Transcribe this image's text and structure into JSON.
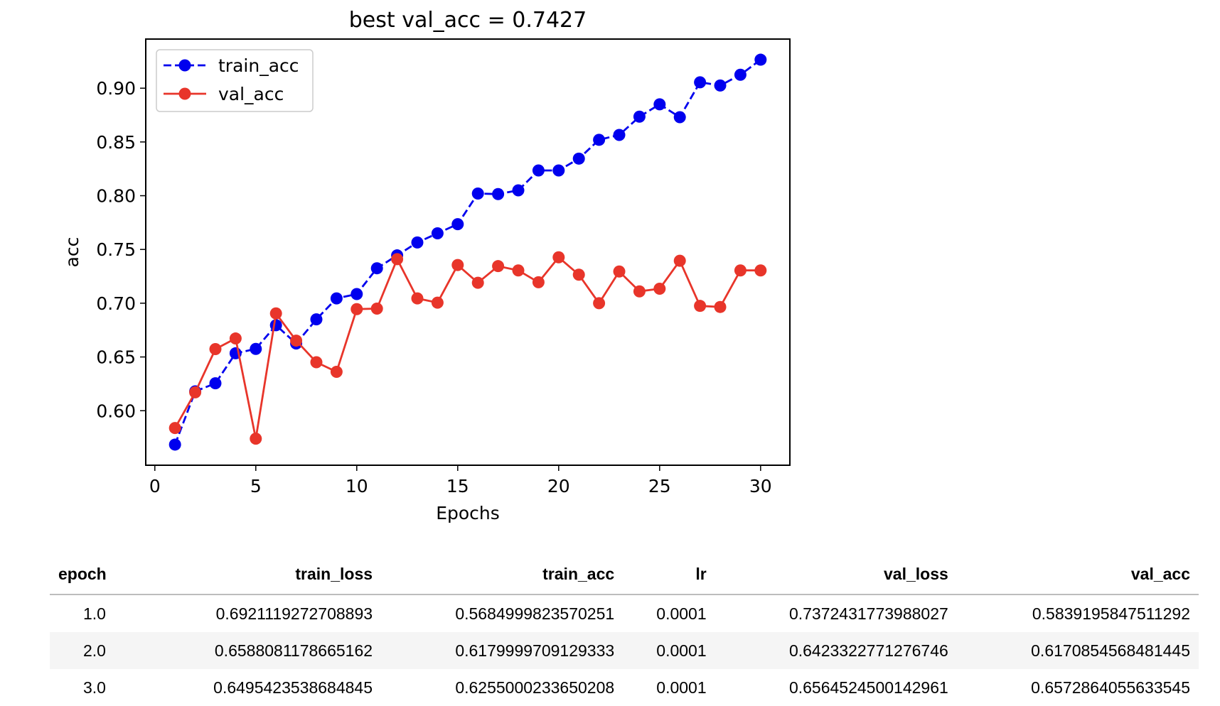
{
  "chart_data": {
    "type": "line",
    "title": "best val_acc = 0.7427",
    "xlabel": "Epochs",
    "ylabel": "acc",
    "xlim": [
      -0.45,
      31.45
    ],
    "ylim": [
      0.5493,
      0.9457
    ],
    "x_ticks": [
      0,
      5,
      10,
      15,
      20,
      25,
      30
    ],
    "y_ticks": [
      0.6,
      0.65,
      0.7,
      0.75,
      0.8,
      0.85,
      0.9
    ],
    "y_tick_labels": [
      "0.60",
      "0.65",
      "0.70",
      "0.75",
      "0.80",
      "0.85",
      "0.90"
    ],
    "legend_position": "top-left",
    "grid": false,
    "x": [
      1,
      2,
      3,
      4,
      5,
      6,
      7,
      8,
      9,
      10,
      11,
      12,
      13,
      14,
      15,
      16,
      17,
      18,
      19,
      20,
      21,
      22,
      23,
      24,
      25,
      26,
      27,
      28,
      29,
      30
    ],
    "series": [
      {
        "name": "train_acc",
        "color": "#0000ee",
        "line_style": "dashed",
        "values": [
          0.5685,
          0.618,
          0.6255,
          0.6534,
          0.6575,
          0.6795,
          0.6625,
          0.685,
          0.7045,
          0.7085,
          0.7325,
          0.7445,
          0.7565,
          0.765,
          0.7735,
          0.802,
          0.8015,
          0.805,
          0.8235,
          0.8235,
          0.8345,
          0.852,
          0.8565,
          0.8735,
          0.885,
          0.873,
          0.9055,
          0.9025,
          0.9125,
          0.9265
        ]
      },
      {
        "name": "val_acc",
        "color": "#e8352a",
        "line_style": "solid",
        "values": [
          0.5839,
          0.6171,
          0.6573,
          0.6672,
          0.574,
          0.6905,
          0.6652,
          0.6451,
          0.6362,
          0.6945,
          0.695,
          0.741,
          0.7045,
          0.7005,
          0.7355,
          0.719,
          0.7345,
          0.7305,
          0.7195,
          0.7427,
          0.7265,
          0.7,
          0.7295,
          0.711,
          0.7135,
          0.7395,
          0.6975,
          0.6965,
          0.7305,
          0.7305
        ]
      }
    ]
  },
  "table": {
    "headers": [
      "epoch",
      "train_loss",
      "train_acc",
      "lr",
      "val_loss",
      "val_acc"
    ],
    "rows": [
      [
        "1.0",
        "0.6921119272708893",
        "0.5684999823570251",
        "0.0001",
        "0.7372431773988027",
        "0.5839195847511292"
      ],
      [
        "2.0",
        "0.6588081178665162",
        "0.6179999709129333",
        "0.0001",
        "0.6423322771276746",
        "0.6170854568481445"
      ],
      [
        "3.0",
        "0.6495423538684845",
        "0.6255000233650208",
        "0.0001",
        "0.6564524500142961",
        "0.6572864055633545"
      ]
    ]
  }
}
